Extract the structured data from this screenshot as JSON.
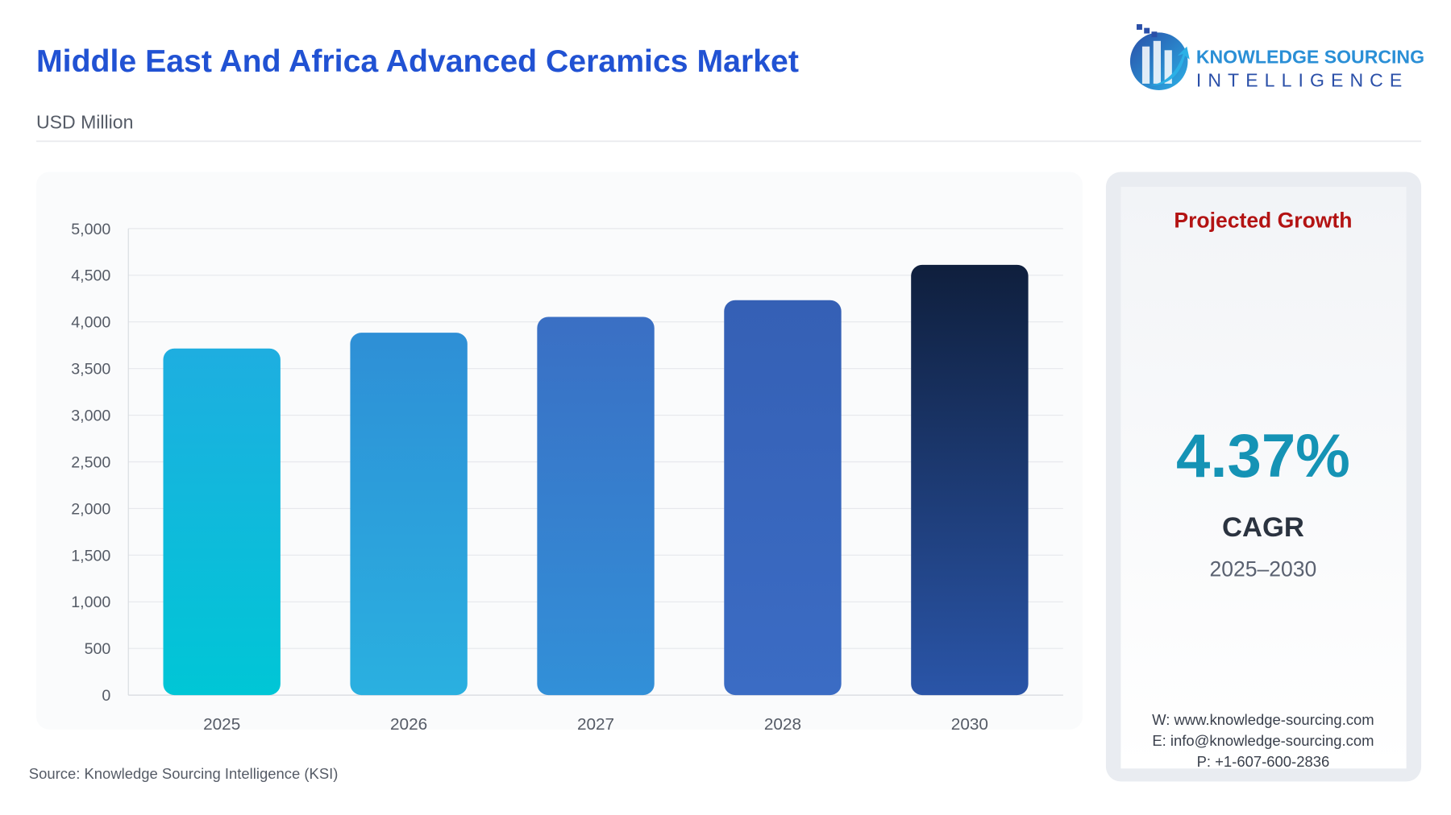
{
  "header": {
    "title": "Middle East And Africa Advanced Ceramics Market",
    "subtitle": "USD Million"
  },
  "logo": {
    "line1": "KNOWLEDGE SOURCING",
    "line2": "INTELLIGENCE"
  },
  "chart_data": {
    "type": "bar",
    "categories": [
      "2025",
      "2026",
      "2027",
      "2028",
      "2030"
    ],
    "values": [
      3715,
      3884,
      4054,
      4233,
      4612
    ],
    "colors": [
      {
        "top": "#1eaee0",
        "bottom": "#00c6d6"
      },
      {
        "top": "#2e8fd6",
        "bottom": "#2ab0e0"
      },
      {
        "top": "#3a6fc4",
        "bottom": "#3290d8"
      },
      {
        "top": "#3560b5",
        "bottom": "#3b6cc4"
      },
      {
        "top": "#0f1f3d",
        "bottom": "#2a55a8"
      }
    ],
    "ylim": [
      0,
      5000
    ],
    "yticks": [
      0,
      500,
      {
        "value": 1000,
        "label": "1,000"
      },
      {
        "value": 1500,
        "label": "1,500"
      },
      {
        "value": 2000,
        "label": "2,000"
      },
      {
        "value": 2500,
        "label": "2,500"
      },
      {
        "value": 3000,
        "label": "3,000"
      },
      {
        "value": 3500,
        "label": "3,500"
      },
      {
        "value": 4000,
        "label": "4,000"
      },
      {
        "value": 4500,
        "label": "4,500"
      },
      {
        "value": 5000,
        "label": "5,000"
      }
    ],
    "grid": true
  },
  "cagr_panel": {
    "heading": "Projected Growth",
    "value": "4.37%",
    "label": "CAGR",
    "period": "2025–2030",
    "contacts": [
      "W: www.knowledge-sourcing.com",
      "E: info@knowledge-sourcing.com",
      "P: +1-607-600-2836"
    ]
  },
  "source": "Source: Knowledge Sourcing Intelligence (KSI)"
}
